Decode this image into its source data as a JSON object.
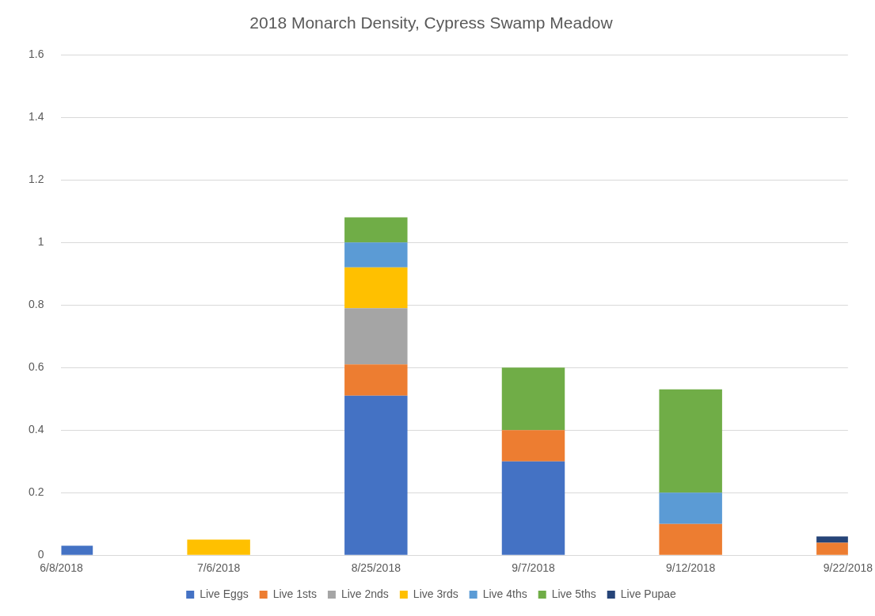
{
  "chart_data": {
    "type": "bar",
    "title": "2018 Monarch Density, Cypress Swamp Meadow",
    "categories": [
      "6/8/2018",
      "7/6/2018",
      "8/25/2018",
      "9/7/2018",
      "9/12/2018",
      "9/22/2018"
    ],
    "stacked": true,
    "grid": "y",
    "legend": "bottom",
    "ylim": [
      0,
      1.6
    ],
    "yticks": [
      0,
      0.2,
      0.4,
      0.6,
      0.8,
      1,
      1.2,
      1.4,
      1.6
    ],
    "series": [
      {
        "name": "Live Eggs",
        "color": "#4472c4",
        "values": [
          0.03,
          null,
          0.51,
          0.3,
          null,
          null
        ]
      },
      {
        "name": "Live 1sts",
        "color": "#ed7d31",
        "values": [
          null,
          null,
          0.1,
          0.1,
          0.1,
          0.04
        ]
      },
      {
        "name": "Live 2nds",
        "color": "#a5a5a5",
        "values": [
          null,
          null,
          0.18,
          null,
          null,
          null
        ]
      },
      {
        "name": "Live 3rds",
        "color": "#ffc000",
        "values": [
          null,
          0.05,
          0.13,
          null,
          null,
          null
        ]
      },
      {
        "name": "Live 4ths",
        "color": "#5b9bd5",
        "values": [
          null,
          null,
          0.08,
          null,
          0.1,
          null
        ]
      },
      {
        "name": "Live 5ths",
        "color": "#70ad47",
        "values": [
          null,
          null,
          0.08,
          0.2,
          0.33,
          null
        ]
      },
      {
        "name": "Live Pupae",
        "color": "#264478",
        "values": [
          null,
          null,
          null,
          null,
          null,
          0.02
        ]
      }
    ]
  }
}
